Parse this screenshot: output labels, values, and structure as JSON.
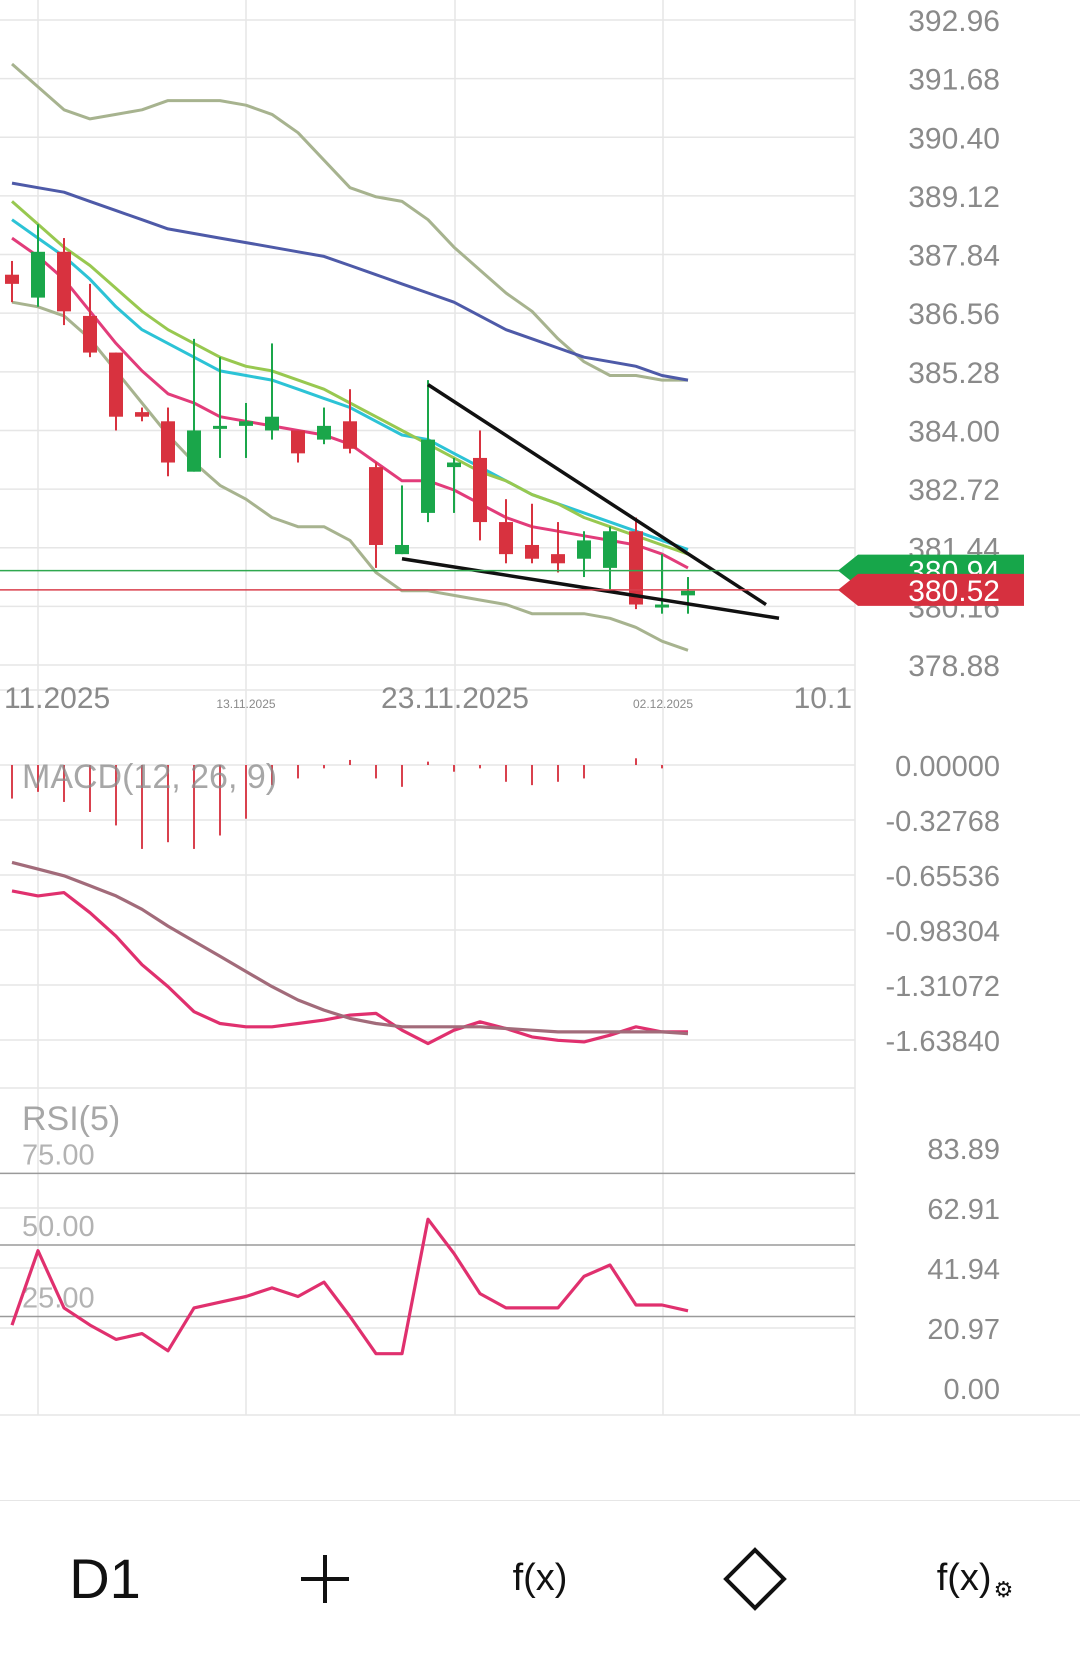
{
  "colors": {
    "background": "#ffffff",
    "grid": "#e6e6e6",
    "axis_text": "#8a8a8a",
    "bull": "#1aa64a",
    "bear": "#d8323f",
    "bollinger": "#a7b38f",
    "ma_blue": "#4e5aa8",
    "ma_cyan": "#2cc3d6",
    "ma_green": "#98c850",
    "ma_pink": "#e23c7a",
    "trendline": "#111111",
    "bid_line": "#2fa84f",
    "ask_line": "#d9414e",
    "macd_line": "#e0306e",
    "macd_signal": "#a26b7a",
    "rsi_line": "#e0306e",
    "bid_badge": "#17a64a",
    "ask_badge": "#d6303f"
  },
  "chart_data": [
    {
      "type": "candlestick",
      "panel": "price",
      "y_ticks": [
        "392.96",
        "391.68",
        "390.40",
        "389.12",
        "387.84",
        "386.56",
        "385.28",
        "384.00",
        "382.72",
        "381.44",
        "380.16",
        "378.88"
      ],
      "ylim": [
        378.2,
        393.3
      ],
      "x_ticks": [
        "11.2025",
        "13.11.2025",
        "23.11.2025",
        "02.12.2025",
        "10.1"
      ],
      "candles": [
        {
          "x": 0,
          "o": 387.4,
          "h": 387.7,
          "l": 386.8,
          "c": 387.2
        },
        {
          "x": 1,
          "o": 386.9,
          "h": 388.5,
          "l": 386.7,
          "c": 387.9
        },
        {
          "x": 2,
          "o": 387.9,
          "h": 388.2,
          "l": 386.3,
          "c": 386.6
        },
        {
          "x": 3,
          "o": 386.5,
          "h": 387.2,
          "l": 385.6,
          "c": 385.7
        },
        {
          "x": 4,
          "o": 385.7,
          "h": 385.7,
          "l": 384.0,
          "c": 384.3
        },
        {
          "x": 5,
          "o": 384.4,
          "h": 384.5,
          "l": 384.2,
          "c": 384.3
        },
        {
          "x": 6,
          "o": 384.2,
          "h": 384.5,
          "l": 383.0,
          "c": 383.3
        },
        {
          "x": 7,
          "o": 383.1,
          "h": 386.0,
          "l": 383.1,
          "c": 384.0
        },
        {
          "x": 8,
          "o": 384.1,
          "h": 385.6,
          "l": 383.4,
          "c": 384.1
        },
        {
          "x": 9,
          "o": 384.1,
          "h": 384.6,
          "l": 383.4,
          "c": 384.2
        },
        {
          "x": 10,
          "o": 384.0,
          "h": 385.9,
          "l": 383.8,
          "c": 384.3
        },
        {
          "x": 11,
          "o": 384.0,
          "h": 384.0,
          "l": 383.3,
          "c": 383.5
        },
        {
          "x": 12,
          "o": 383.8,
          "h": 384.5,
          "l": 383.7,
          "c": 384.1
        },
        {
          "x": 13,
          "o": 384.2,
          "h": 384.9,
          "l": 383.5,
          "c": 383.6
        },
        {
          "x": 14,
          "o": 383.2,
          "h": 383.3,
          "l": 381.0,
          "c": 381.5
        },
        {
          "x": 15,
          "o": 381.3,
          "h": 382.8,
          "l": 381.3,
          "c": 381.5
        },
        {
          "x": 16,
          "o": 382.2,
          "h": 385.1,
          "l": 382.0,
          "c": 383.8
        },
        {
          "x": 17,
          "o": 383.2,
          "h": 383.4,
          "l": 382.2,
          "c": 383.3
        },
        {
          "x": 18,
          "o": 383.4,
          "h": 384.0,
          "l": 381.6,
          "c": 382.0
        },
        {
          "x": 19,
          "o": 382.0,
          "h": 382.5,
          "l": 381.1,
          "c": 381.3
        },
        {
          "x": 20,
          "o": 381.5,
          "h": 382.4,
          "l": 381.1,
          "c": 381.2
        },
        {
          "x": 21,
          "o": 381.3,
          "h": 382.0,
          "l": 380.9,
          "c": 381.1
        },
        {
          "x": 22,
          "o": 381.2,
          "h": 381.8,
          "l": 380.8,
          "c": 381.6
        },
        {
          "x": 23,
          "o": 381.0,
          "h": 381.9,
          "l": 380.5,
          "c": 381.8
        },
        {
          "x": 24,
          "o": 381.8,
          "h": 382.1,
          "l": 380.1,
          "c": 380.2
        },
        {
          "x": 25,
          "o": 380.2,
          "h": 381.3,
          "l": 380.0,
          "c": 380.2
        },
        {
          "x": 26,
          "o": 380.4,
          "h": 380.8,
          "l": 380.0,
          "c": 380.5
        }
      ],
      "series": [
        {
          "key": "bb_upper",
          "values": [
            392.0,
            391.5,
            391.0,
            390.8,
            390.9,
            391.0,
            391.2,
            391.2,
            391.2,
            391.1,
            390.9,
            390.5,
            389.9,
            389.3,
            389.1,
            389.0,
            388.6,
            388.0,
            387.5,
            387.0,
            386.6,
            386.0,
            385.5,
            385.2,
            385.2,
            385.1,
            385.1
          ]
        },
        {
          "key": "bb_lower",
          "values": [
            386.8,
            386.7,
            386.5,
            386.0,
            385.3,
            384.6,
            383.9,
            383.3,
            382.8,
            382.5,
            382.1,
            381.9,
            381.9,
            381.6,
            380.9,
            380.5,
            380.5,
            380.4,
            380.3,
            380.2,
            380.0,
            380.0,
            380.0,
            379.9,
            379.7,
            379.4,
            379.2
          ]
        },
        {
          "key": "ma_blue",
          "values": [
            389.4,
            389.3,
            389.2,
            389.0,
            388.8,
            388.6,
            388.4,
            388.3,
            388.2,
            388.1,
            388.0,
            387.9,
            387.8,
            387.6,
            387.4,
            387.2,
            387.0,
            386.8,
            386.5,
            386.2,
            386.0,
            385.8,
            385.6,
            385.5,
            385.4,
            385.2,
            385.1
          ]
        },
        {
          "key": "ma_cyan",
          "values": [
            388.6,
            388.2,
            387.8,
            387.3,
            386.7,
            386.2,
            385.9,
            385.6,
            385.3,
            385.2,
            385.1,
            384.9,
            384.7,
            384.5,
            384.2,
            383.9,
            383.8,
            383.5,
            383.2,
            382.9,
            382.6,
            382.4,
            382.2,
            382.0,
            381.8,
            381.6,
            381.4
          ]
        },
        {
          "key": "ma_green",
          "values": [
            389.0,
            388.5,
            388.0,
            387.6,
            387.1,
            386.6,
            386.2,
            385.9,
            385.6,
            385.4,
            385.3,
            385.1,
            384.9,
            384.6,
            384.3,
            384.0,
            383.7,
            383.4,
            383.1,
            382.9,
            382.6,
            382.4,
            382.1,
            381.9,
            381.7,
            381.5,
            381.3
          ]
        },
        {
          "key": "ma_pink",
          "values": [
            388.2,
            387.8,
            387.3,
            386.6,
            385.9,
            385.3,
            384.8,
            384.6,
            384.3,
            384.2,
            384.1,
            384.0,
            383.9,
            383.7,
            383.3,
            382.9,
            382.9,
            382.7,
            382.4,
            382.1,
            381.9,
            381.8,
            381.7,
            381.6,
            381.5,
            381.3,
            381.0
          ]
        }
      ],
      "trendlines": [
        {
          "from": [
            16,
            385.0
          ],
          "to": [
            29,
            380.2
          ]
        },
        {
          "from": [
            15,
            381.2
          ],
          "to": [
            29.5,
            379.9
          ]
        }
      ],
      "price_lines": {
        "bid": 380.94,
        "ask": 380.52
      },
      "badges": {
        "bid_label": "380.94",
        "ask_label": "380.52"
      }
    },
    {
      "type": "line",
      "panel": "macd",
      "title": "MACD(12, 26, 9)",
      "y_ticks": [
        "0.00000",
        "-0.32768",
        "-0.65536",
        "-0.98304",
        "-1.31072",
        "-1.63840"
      ],
      "ylim": [
        -1.85,
        0.02
      ],
      "histogram": [
        -0.2,
        -0.16,
        -0.22,
        -0.28,
        -0.36,
        -0.5,
        -0.46,
        -0.5,
        -0.42,
        -0.32,
        -0.12,
        -0.08,
        -0.02,
        0.03,
        -0.08,
        -0.13,
        0.02,
        -0.04,
        -0.02,
        -0.1,
        -0.12,
        -0.1,
        -0.08,
        0.0,
        0.04,
        -0.02,
        0.0
      ],
      "series": [
        {
          "key": "macd",
          "values": [
            -0.75,
            -0.78,
            -0.76,
            -0.88,
            -1.02,
            -1.19,
            -1.32,
            -1.47,
            -1.54,
            -1.56,
            -1.56,
            -1.54,
            -1.52,
            -1.49,
            -1.48,
            -1.58,
            -1.66,
            -1.58,
            -1.53,
            -1.57,
            -1.62,
            -1.64,
            -1.65,
            -1.61,
            -1.56,
            -1.59,
            -1.59
          ]
        },
        {
          "key": "signal",
          "values": [
            -0.58,
            -0.62,
            -0.66,
            -0.72,
            -0.78,
            -0.86,
            -0.96,
            -1.05,
            -1.14,
            -1.23,
            -1.32,
            -1.4,
            -1.46,
            -1.51,
            -1.54,
            -1.56,
            -1.56,
            -1.56,
            -1.56,
            -1.57,
            -1.58,
            -1.59,
            -1.59,
            -1.59,
            -1.59,
            -1.59,
            -1.6
          ]
        }
      ]
    },
    {
      "type": "line",
      "panel": "rsi",
      "title": "RSI(5)",
      "y_ticks": [
        "83.89",
        "62.91",
        "41.94",
        "20.97",
        "0.00"
      ],
      "ylim": [
        0,
        94
      ],
      "levels": [
        {
          "value": 75,
          "label": "75.00"
        },
        {
          "value": 50,
          "label": "50.00"
        },
        {
          "value": 25,
          "label": "25.00"
        }
      ],
      "series": [
        {
          "key": "rsi",
          "values": [
            22,
            48,
            28,
            22,
            17,
            19,
            13,
            28,
            30,
            32,
            35,
            32,
            37,
            25,
            12,
            12,
            59,
            47,
            33,
            28,
            28,
            28,
            39,
            43,
            29,
            29,
            27
          ]
        }
      ]
    }
  ],
  "toolbar": {
    "timeframe_label": "D1",
    "add_label": "+",
    "indicator_label": "f(x)",
    "draw_icon": "diamond-icon",
    "indicator_settings_label": "f(x)",
    "indicator_settings_icon": "gear-icon"
  }
}
